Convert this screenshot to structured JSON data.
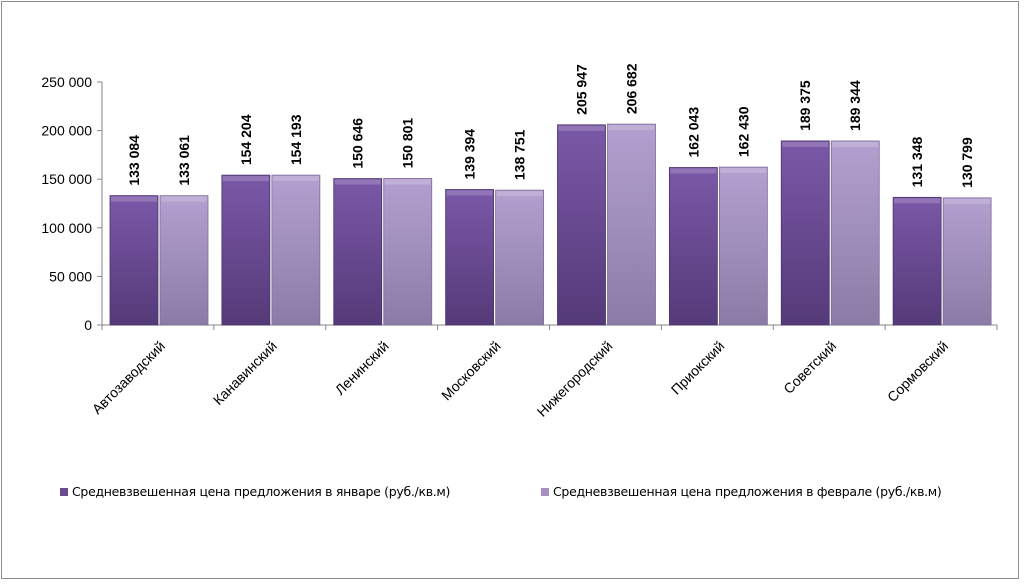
{
  "chart_data": {
    "type": "bar",
    "title": "",
    "xlabel": "",
    "ylabel": "",
    "ylim": [
      0,
      250000
    ],
    "yticks": [
      "0",
      "50 000",
      "100 000",
      "150 000",
      "200 000",
      "250 000"
    ],
    "categories": [
      "Автозаводский",
      "Канавинский",
      "Ленинский",
      "Московский",
      "Нижегородский",
      "Приокский",
      "Советский",
      "Сормовский"
    ],
    "series": [
      {
        "name": "Средневзвешенная  цена предложения в январе (руб./кв.м)",
        "color": "#6a4c93",
        "values": [
          133084,
          154204,
          150646,
          139394,
          205947,
          162043,
          189375,
          131348
        ],
        "labels": [
          "133 084",
          "154 204",
          "150 646",
          "139 394",
          "205 947",
          "162 043",
          "189 375",
          "131 348"
        ]
      },
      {
        "name": "Средневзвешенная  цена предложения в феврале (руб./кв.м)",
        "color": "#a690c2",
        "values": [
          133061,
          154193,
          150801,
          138751,
          206682,
          162430,
          189344,
          130799
        ],
        "labels": [
          "133 061",
          "154 193",
          "150 801",
          "138 751",
          "206 682",
          "162 430",
          "189 344",
          "130 799"
        ]
      }
    ],
    "legend": "bottom",
    "grid": false
  }
}
